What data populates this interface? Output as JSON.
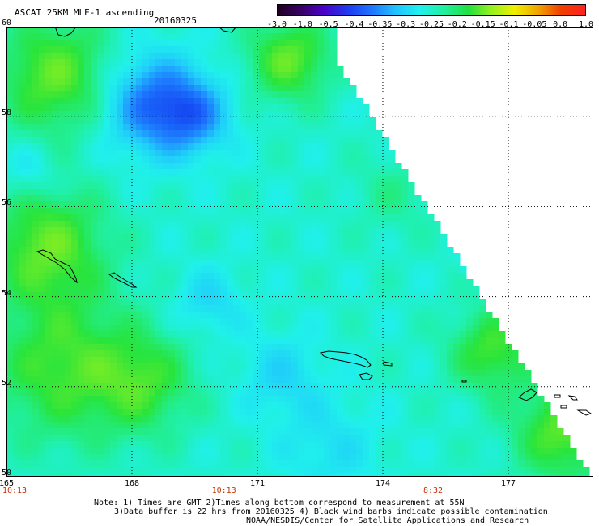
{
  "header": {
    "title": "ASCAT 25KM MLE-1 ascending",
    "date": "20160325"
  },
  "colorbar": {
    "labels": [
      "-3.0",
      "-1.0",
      "-0.5",
      "-0.4",
      "-0.35",
      "-0.3",
      "-0.25",
      "-0.2",
      "-0.15",
      "-0.1",
      "-0.05",
      "0.0",
      "1.0"
    ],
    "colors": [
      "#200020",
      "#3a006a",
      "#4b00c8",
      "#1e3cf0",
      "#1e78ff",
      "#20c0ff",
      "#20f0f0",
      "#20f0a0",
      "#20e040",
      "#90f020",
      "#f0f000",
      "#f0a000",
      "#f04000",
      "#ff2020"
    ]
  },
  "map": {
    "lon_min": 165,
    "lon_max": 179,
    "lat_min": 50,
    "lat_max": 60,
    "lon_ticks": [
      165,
      168,
      171,
      174,
      177
    ],
    "lat_ticks": [
      50,
      52,
      54,
      56,
      58,
      60
    ],
    "lon_labels": [
      "165",
      "168",
      "171",
      "174",
      "177"
    ],
    "lat_labels": [
      "50",
      "52",
      "54",
      "56",
      "58",
      "60"
    ],
    "land_color": "#000000",
    "nodata_color": "#ffffff"
  },
  "times": [
    {
      "lon": 165,
      "label": "10:13"
    },
    {
      "lon": 170.2,
      "label": "10:13"
    },
    {
      "lon": 175.2,
      "label": "8:32"
    }
  ],
  "times_color": "#c83200",
  "notes": {
    "line1": "Note: 1) Times are GMT 2)Times along bottom correspond to measurement at 55N",
    "line2": "3)Data buffer is 22 hrs from 20160325 4) Black wind barbs indicate possible contamination",
    "line3": "NOAA/NESDIS/Center for Satellite Applications and Research"
  }
}
